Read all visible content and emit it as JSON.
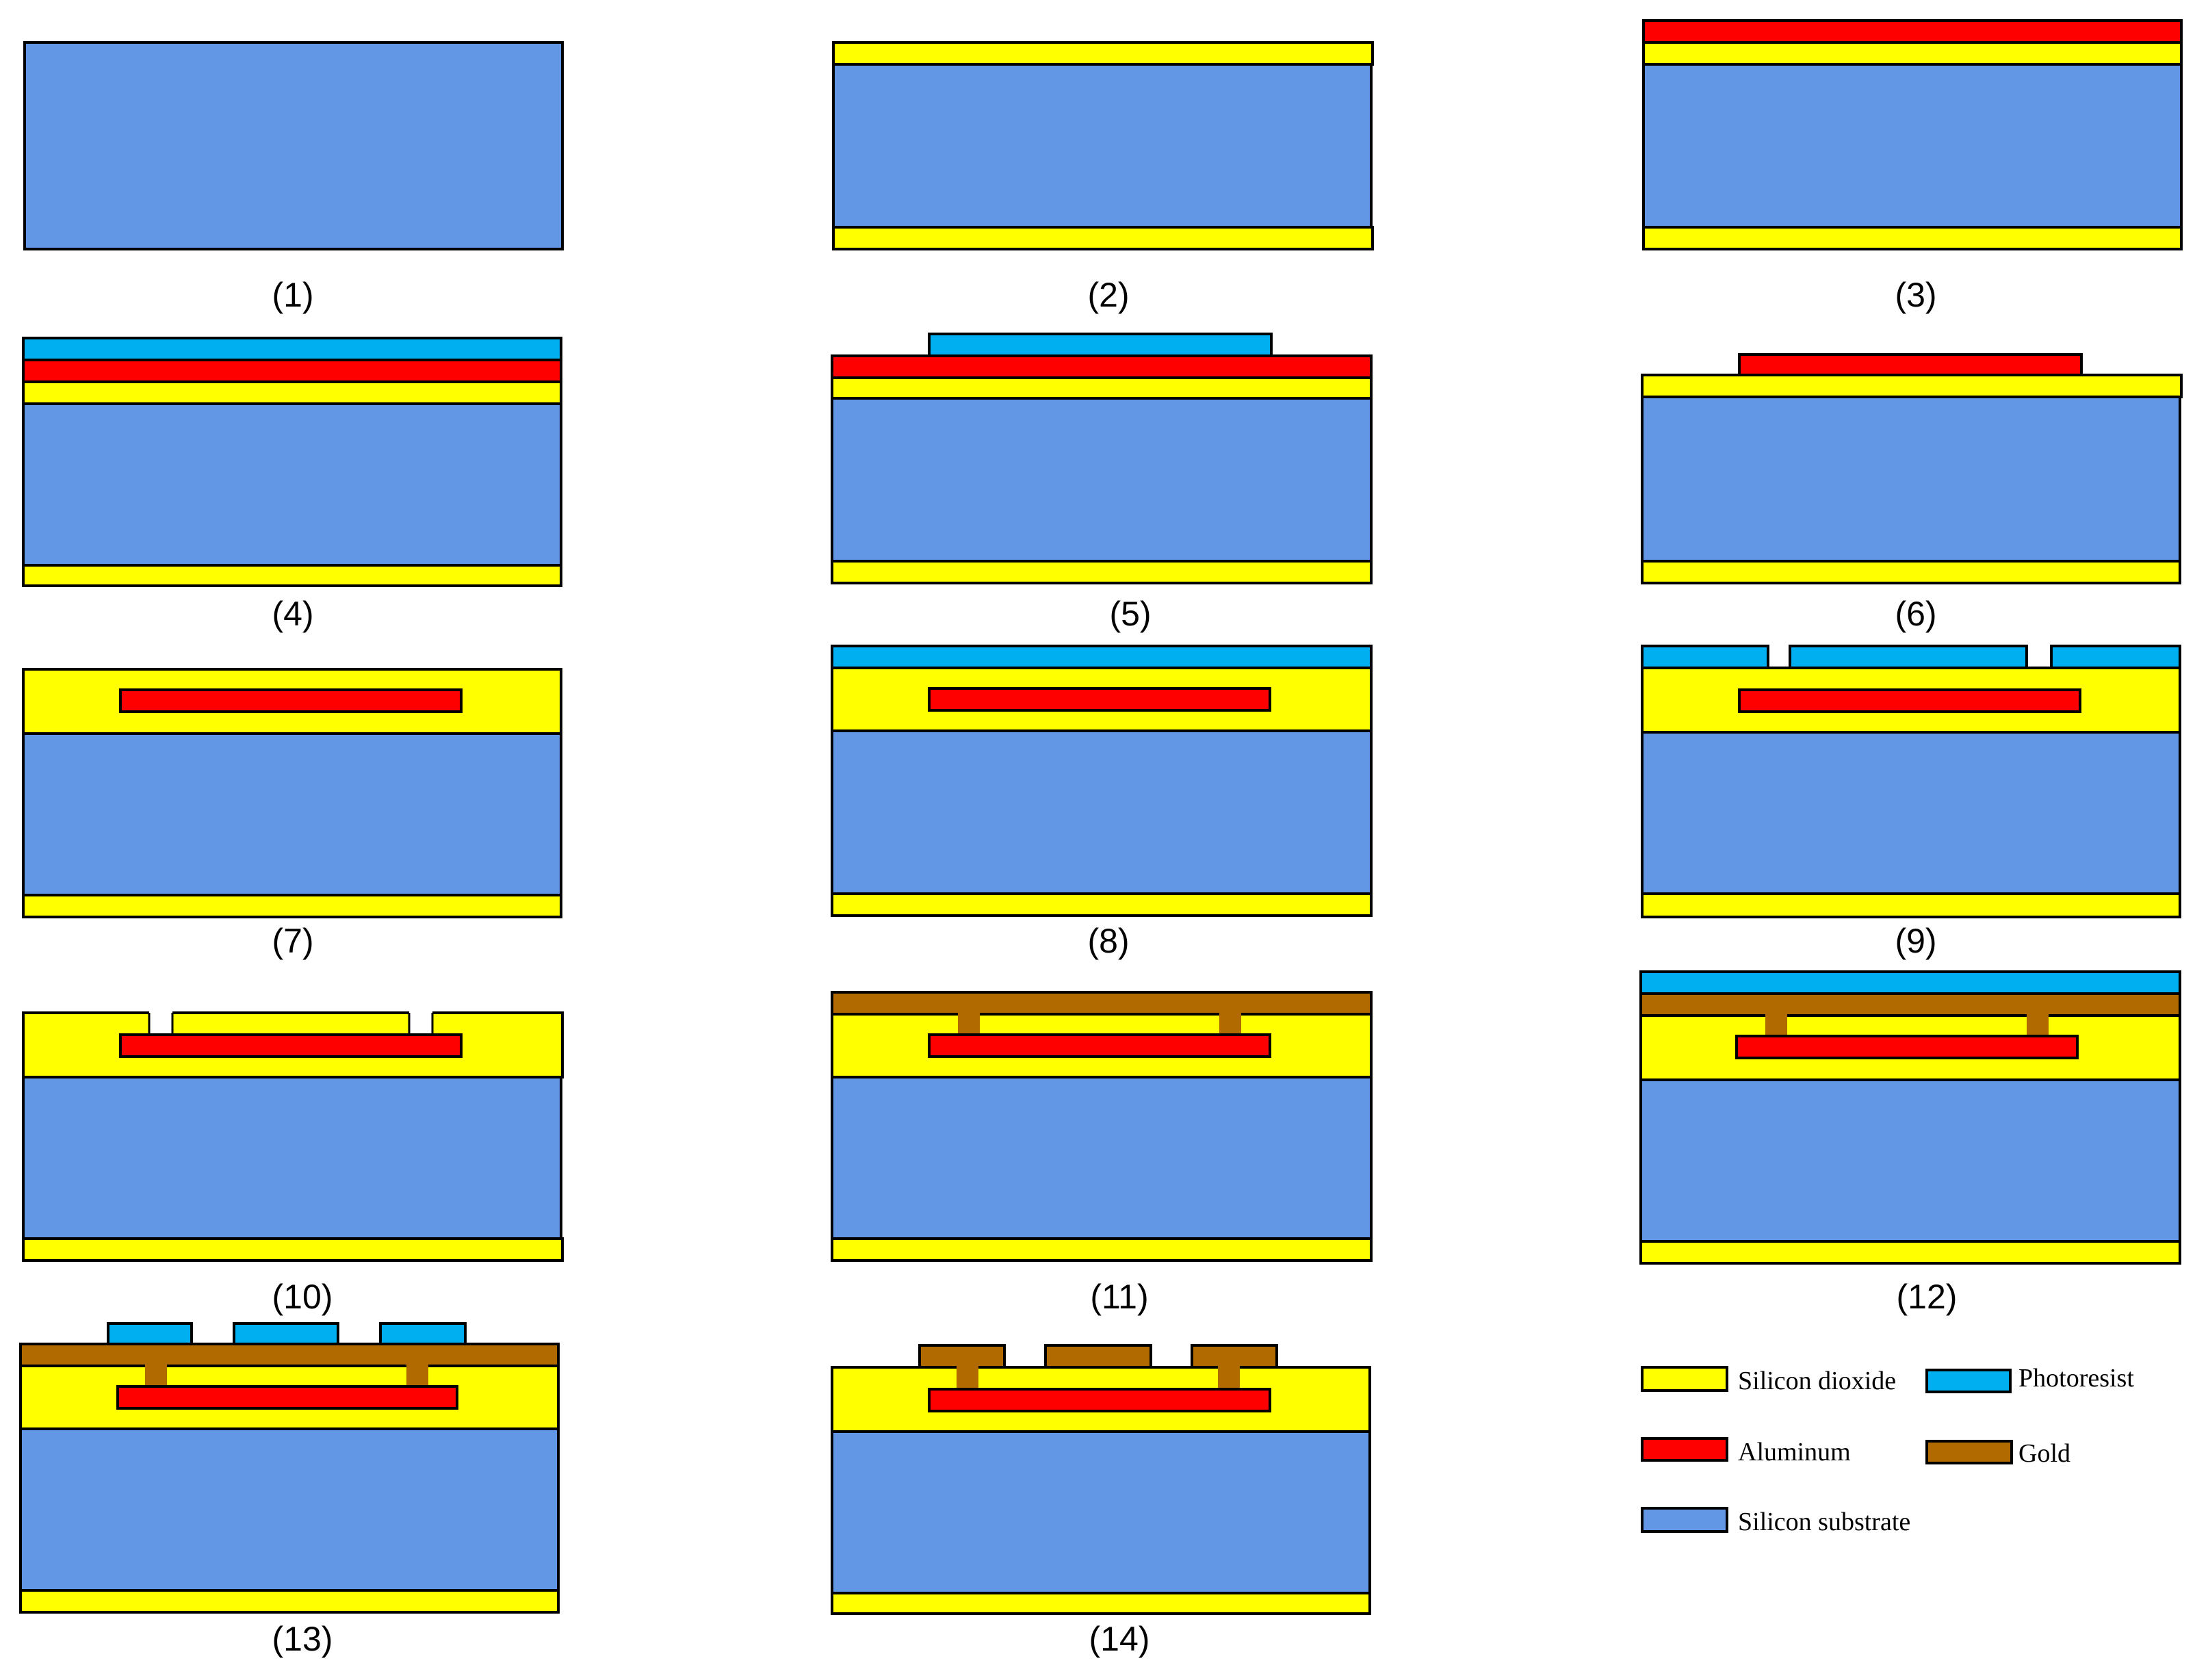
{
  "colors": {
    "substrate": "#6297E5",
    "oxide": "#FFFF00",
    "aluminum": "#FF0000",
    "photoresist": "#00AFEF",
    "gold": "#B06A00",
    "outline": "#000000",
    "background": "#FFFFFF"
  },
  "steps": [
    {
      "label": "(1)"
    },
    {
      "label": "(2)"
    },
    {
      "label": "(3)"
    },
    {
      "label": "(4)"
    },
    {
      "label": "(5)"
    },
    {
      "label": "(6)"
    },
    {
      "label": "(7)"
    },
    {
      "label": "(8)"
    },
    {
      "label": "(9)"
    },
    {
      "label": "(10)"
    },
    {
      "label": "(11)"
    },
    {
      "label": "(12)"
    },
    {
      "label": "(13)"
    },
    {
      "label": "(14)"
    }
  ],
  "legend": {
    "oxide": "Silicon dioxide",
    "photoresist": "Photoresist",
    "aluminum": "Aluminum",
    "gold": "Gold",
    "substrate": "Silicon substrate"
  }
}
